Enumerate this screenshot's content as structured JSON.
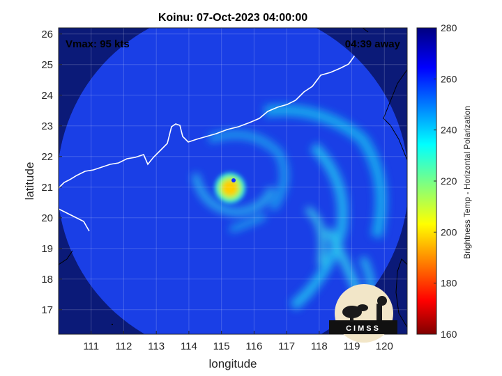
{
  "title": "Koinu: 07-Oct-2023 04:00:00",
  "xlabel": "longitude",
  "ylabel": "latitude",
  "colorbar_label": "Brightness Temp - Horizontal Polarization",
  "annotations": {
    "vmax": "Vmax: 95 kts",
    "time_away": "04:39 away"
  },
  "logo": {
    "text": "CIMSS"
  },
  "axes": {
    "xlim": [
      110,
      120.7
    ],
    "ylim": [
      16.2,
      26.2
    ],
    "xticks": [
      111,
      112,
      113,
      114,
      115,
      116,
      117,
      118,
      119,
      120
    ],
    "yticks": [
      17,
      18,
      19,
      20,
      21,
      22,
      23,
      24,
      25,
      26
    ],
    "grid": true
  },
  "colorbar": {
    "range": [
      160,
      280
    ],
    "ticks": [
      160,
      180,
      200,
      220,
      240,
      260,
      280
    ],
    "colormap": "jet"
  },
  "storm": {
    "name": "Koinu",
    "center_lon": 115.35,
    "center_lat": 20.9
  },
  "colors": {
    "outside_swath": "#0b1a78",
    "swath_base": "#1a3fe6",
    "coastline": "#ffffff",
    "outside_coastline": "#000000"
  }
}
